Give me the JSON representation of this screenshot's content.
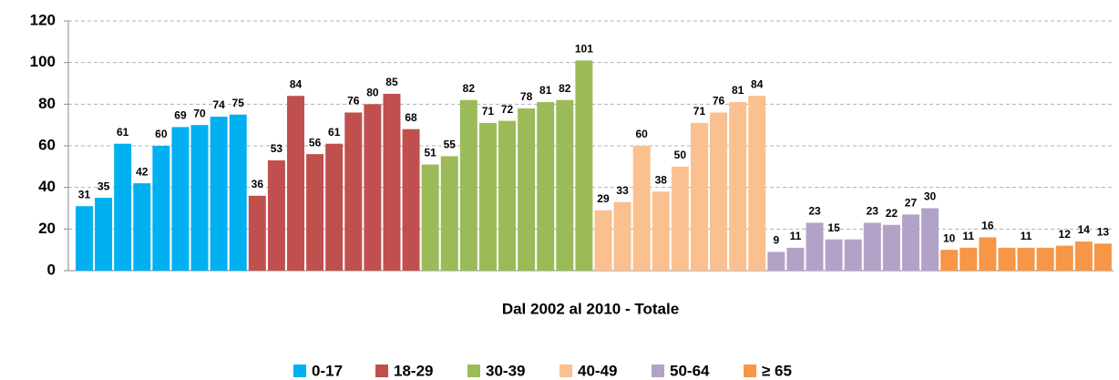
{
  "chart_data": {
    "type": "bar",
    "x_label": "Dal 2002 al 2010 - Totale",
    "categories": [
      null,
      null,
      null,
      null,
      null,
      null,
      null,
      null,
      null
    ],
    "series": [
      {
        "name": "0-17",
        "color": "#00b0f0",
        "values": [
          31,
          35,
          61,
          42,
          60,
          69,
          70,
          74,
          75
        ]
      },
      {
        "name": "18-29",
        "color": "#c0504d",
        "values": [
          36,
          53,
          84,
          56,
          61,
          76,
          80,
          85,
          68
        ]
      },
      {
        "name": "30-39",
        "color": "#9bbb59",
        "values": [
          51,
          55,
          82,
          71,
          72,
          78,
          81,
          82,
          101
        ]
      },
      {
        "name": "40-49",
        "color": "#fac090",
        "values": [
          29,
          33,
          60,
          38,
          50,
          71,
          76,
          81,
          84
        ]
      },
      {
        "name": "50-64",
        "color": "#b3a2c7",
        "values": [
          9,
          11,
          23,
          15,
          15,
          23,
          22,
          27,
          30
        ],
        "value_labels": [
          "9",
          "11",
          "23",
          "15",
          null,
          "23",
          "22",
          "27",
          "30"
        ]
      },
      {
        "name": "≥ 65",
        "color": "#f79646",
        "values": [
          10,
          11,
          16,
          11,
          11,
          11,
          12,
          14,
          13
        ],
        "value_labels": [
          "10",
          "11",
          "16",
          null,
          "11",
          null,
          "12",
          "14",
          "13"
        ]
      }
    ],
    "ylim": [
      0,
      120
    ],
    "yticks": [
      0,
      20,
      40,
      60,
      80,
      100,
      120
    ],
    "grid": true,
    "legend": "bottom"
  }
}
